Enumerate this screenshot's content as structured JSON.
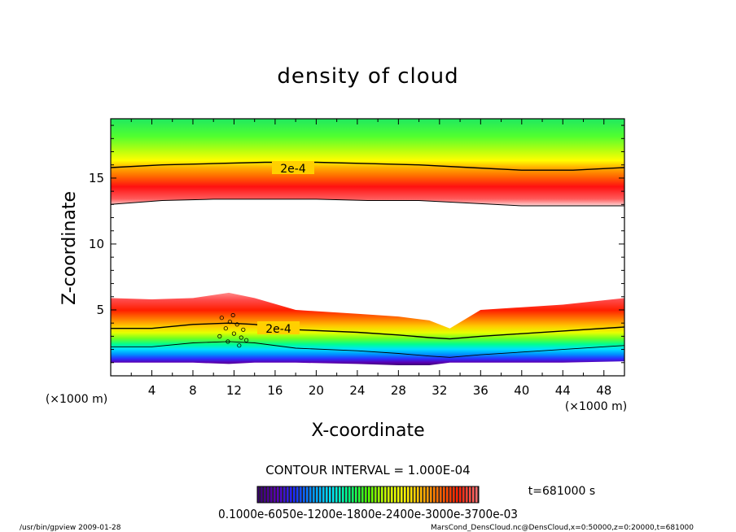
{
  "chart_data": {
    "type": "heatmap",
    "title": "density of cloud",
    "xlabel": "X-coordinate",
    "ylabel": "Z-coordinate",
    "xunit": "(×1000 m)",
    "yunit": "(×1000 m)",
    "xlim": [
      0,
      50
    ],
    "ylim": [
      0,
      19.5
    ],
    "x_ticks": [
      4,
      8,
      12,
      16,
      20,
      24,
      28,
      32,
      36,
      40,
      44,
      48
    ],
    "y_ticks": [
      5,
      10,
      15
    ],
    "x_tick_labels": [
      "4",
      "8",
      "12",
      "16",
      "20",
      "24",
      "28",
      "32",
      "36",
      "40",
      "44",
      "48"
    ],
    "y_tick_labels": [
      "5",
      "10",
      "15"
    ],
    "colormap": [
      "#3a006f",
      "#5a00b4",
      "#1a2cff",
      "#0096ff",
      "#00e6ff",
      "#00ff80",
      "#4cff00",
      "#c8ff00",
      "#ffff00",
      "#ffb400",
      "#ff6400",
      "#ff1e00",
      "#ff6a6a"
    ],
    "upper_layer": {
      "bottom_z": [
        13.0,
        13.3,
        13.4,
        13.4,
        13.4,
        13.3,
        13.3,
        13.1,
        12.9,
        12.9,
        12.9
      ],
      "contour_2e-4_z": [
        15.8,
        16.0,
        16.1,
        16.2,
        16.2,
        16.1,
        16.0,
        15.8,
        15.6,
        15.6,
        15.8
      ]
    },
    "lower_layer": {
      "top_z": [
        5.9,
        5.8,
        5.9,
        6.3,
        5.9,
        5.0,
        4.7,
        4.5,
        4.2,
        3.6,
        5.0,
        5.4,
        5.9
      ],
      "top_x": [
        0,
        4,
        8,
        11.5,
        14,
        18,
        24,
        28,
        31,
        33,
        36,
        44,
        50
      ],
      "contour_2e-4_z": [
        3.6,
        3.6,
        3.9,
        4.0,
        3.9,
        3.5,
        3.3,
        3.1,
        2.9,
        2.8,
        3.0,
        3.4,
        3.7
      ],
      "bottom_z": [
        1.0,
        1.0,
        1.0,
        0.9,
        1.0,
        1.0,
        0.9,
        0.8,
        0.8,
        1.0,
        1.0,
        1.0,
        1.1
      ]
    },
    "contour_labels": [
      "2e-4",
      "2e-4"
    ],
    "contour_interval": "CONTOUR INTERVAL = 1.000E-04",
    "time": "t=681000  s",
    "colorbar_labels": "0.1000e-6050e-1200e-1800e-2400e-3000e-3700e-03",
    "footer_left": "/usr/bin/gpview  2009-01-28",
    "footer_right": "MarsCond_DensCloud.nc@DensCloud,x=0:50000,z=0:20000,t=681000",
    "grid": false,
    "legend": "none"
  }
}
